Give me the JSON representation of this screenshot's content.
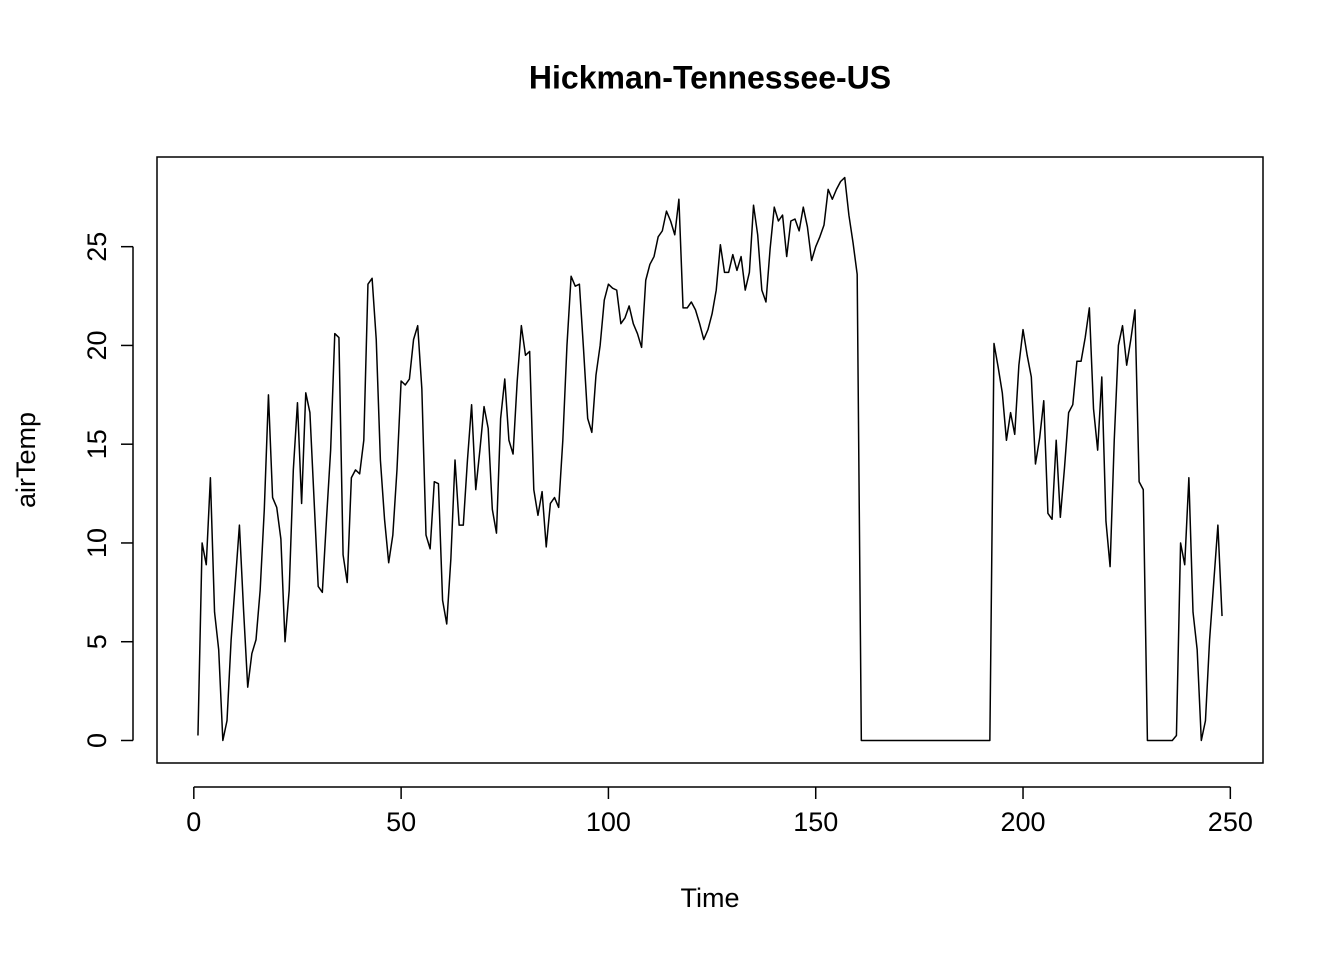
{
  "chart_data": {
    "type": "line",
    "title": "Hickman-Tennessee-US",
    "x_label": "Time",
    "y_label": "airTemp",
    "color": "#000000",
    "x": [
      1,
      2,
      3,
      4,
      5,
      6,
      7,
      8,
      9,
      10,
      11,
      12,
      13,
      14,
      15,
      16,
      17,
      18,
      19,
      20,
      21,
      22,
      23,
      24,
      25,
      26,
      27,
      28,
      29,
      30,
      31,
      32,
      33,
      34,
      35,
      36,
      37,
      38,
      39,
      40,
      41,
      42,
      43,
      44,
      45,
      46,
      47,
      48,
      49,
      50,
      51,
      52,
      53,
      54,
      55,
      56,
      57,
      58,
      59,
      60,
      61,
      62,
      63,
      64,
      65,
      66,
      67,
      68,
      69,
      70,
      71,
      72,
      73,
      74,
      75,
      76,
      77,
      78,
      79,
      80,
      81,
      82,
      83,
      84,
      85,
      86,
      87,
      88,
      89,
      90,
      91,
      92,
      93,
      94,
      95,
      96,
      97,
      98,
      99,
      100,
      101,
      102,
      103,
      104,
      105,
      106,
      107,
      108,
      109,
      110,
      111,
      112,
      113,
      114,
      115,
      116,
      117,
      118,
      119,
      120,
      121,
      122,
      123,
      124,
      125,
      126,
      127,
      128,
      129,
      130,
      131,
      132,
      133,
      134,
      135,
      136,
      137,
      138,
      139,
      140,
      141,
      142,
      143,
      144,
      145,
      146,
      147,
      148,
      149,
      150,
      151,
      152,
      153,
      154,
      155,
      156,
      157,
      158,
      159,
      160,
      161,
      162,
      163,
      164,
      165,
      166,
      167,
      168,
      169,
      170,
      171,
      172,
      173,
      174,
      175,
      176,
      177,
      178,
      179,
      180,
      181,
      182,
      183,
      184,
      185,
      186,
      187,
      188,
      189,
      190,
      191,
      192,
      193,
      194,
      195,
      196,
      197,
      198,
      199,
      200,
      201,
      202,
      203,
      204,
      205,
      206,
      207,
      208,
      209,
      210,
      211,
      212,
      213,
      214,
      215,
      216,
      217,
      218,
      219,
      220,
      221,
      222,
      223,
      224,
      225,
      226,
      227,
      228,
      229,
      230,
      231,
      232,
      233,
      234,
      235,
      236,
      237,
      238,
      239,
      240,
      241,
      242,
      243,
      244,
      245,
      246,
      247,
      248
    ],
    "values": [
      0.25,
      10.0,
      8.9,
      13.3,
      6.5,
      4.6,
      0,
      1.0,
      5.1,
      8.0,
      10.9,
      6.6,
      2.7,
      4.4,
      5.1,
      7.6,
      11.7,
      17.5,
      12.3,
      11.8,
      10.2,
      5.0,
      7.6,
      13.7,
      17.1,
      12.0,
      17.6,
      16.6,
      12.2,
      7.8,
      7.5,
      11.2,
      14.7,
      20.6,
      20.4,
      9.4,
      8.0,
      13.3,
      13.7,
      13.5,
      15.2,
      23.1,
      23.4,
      20.3,
      14.2,
      11.2,
      9.0,
      10.4,
      13.7,
      18.2,
      18.0,
      18.3,
      20.3,
      21.0,
      17.8,
      10.4,
      9.7,
      13.1,
      13.0,
      7.1,
      5.9,
      9.2,
      14.2,
      10.9,
      10.9,
      14.2,
      17.0,
      12.7,
      14.7,
      16.9,
      15.8,
      11.7,
      10.5,
      16.3,
      18.3,
      15.2,
      14.5,
      18.2,
      21.0,
      19.5,
      19.7,
      12.7,
      11.4,
      12.6,
      9.8,
      12.0,
      12.3,
      11.8,
      15.2,
      20.0,
      23.5,
      23.0,
      23.1,
      19.8,
      16.3,
      15.6,
      18.5,
      20.0,
      22.3,
      23.1,
      22.9,
      22.8,
      21.1,
      21.4,
      22.0,
      21.1,
      20.6,
      19.9,
      23.3,
      24.1,
      24.5,
      25.5,
      25.8,
      26.8,
      26.3,
      25.6,
      27.4,
      21.9,
      21.9,
      22.2,
      21.8,
      21.1,
      20.3,
      20.8,
      21.6,
      22.8,
      25.1,
      23.7,
      23.7,
      24.6,
      23.8,
      24.5,
      22.8,
      23.7,
      27.1,
      25.6,
      22.8,
      22.2,
      24.9,
      27.0,
      26.3,
      26.6,
      24.5,
      26.3,
      26.4,
      25.8,
      27.0,
      26.0,
      24.3,
      25.0,
      25.5,
      26.1,
      27.9,
      27.4,
      27.9,
      28.3,
      28.5,
      26.6,
      25.2,
      23.6,
      0,
      0,
      0,
      0,
      0,
      0,
      0,
      0,
      0,
      0,
      0,
      0,
      0,
      0,
      0,
      0,
      0,
      0,
      0,
      0,
      0,
      0,
      0,
      0,
      0,
      0,
      0,
      0,
      0,
      0,
      0,
      0,
      20.1,
      18.9,
      17.6,
      15.2,
      16.6,
      15.5,
      19.0,
      20.8,
      19.5,
      18.4,
      14.0,
      15.3,
      17.2,
      11.5,
      11.2,
      15.2,
      11.3,
      13.8,
      16.6,
      17.0,
      19.2,
      19.2,
      20.4,
      21.9,
      16.8,
      14.7,
      18.4,
      11.1,
      8.8,
      15.2,
      20.0,
      21.0,
      19.0,
      20.3,
      21.8,
      13.1,
      12.7,
      0,
      0,
      0,
      0,
      0,
      0,
      0,
      0.25,
      10.0,
      8.9,
      13.3,
      6.5,
      4.6,
      0,
      1.0,
      5.1,
      8.0,
      10.9,
      6.3
    ],
    "xlim": [
      -8.88,
      257.88
    ],
    "ylim": [
      -1.14,
      29.54
    ],
    "xticks": [
      0,
      50,
      100,
      150,
      200,
      250
    ],
    "yticks": [
      0,
      5,
      10,
      15,
      20,
      25
    ]
  }
}
